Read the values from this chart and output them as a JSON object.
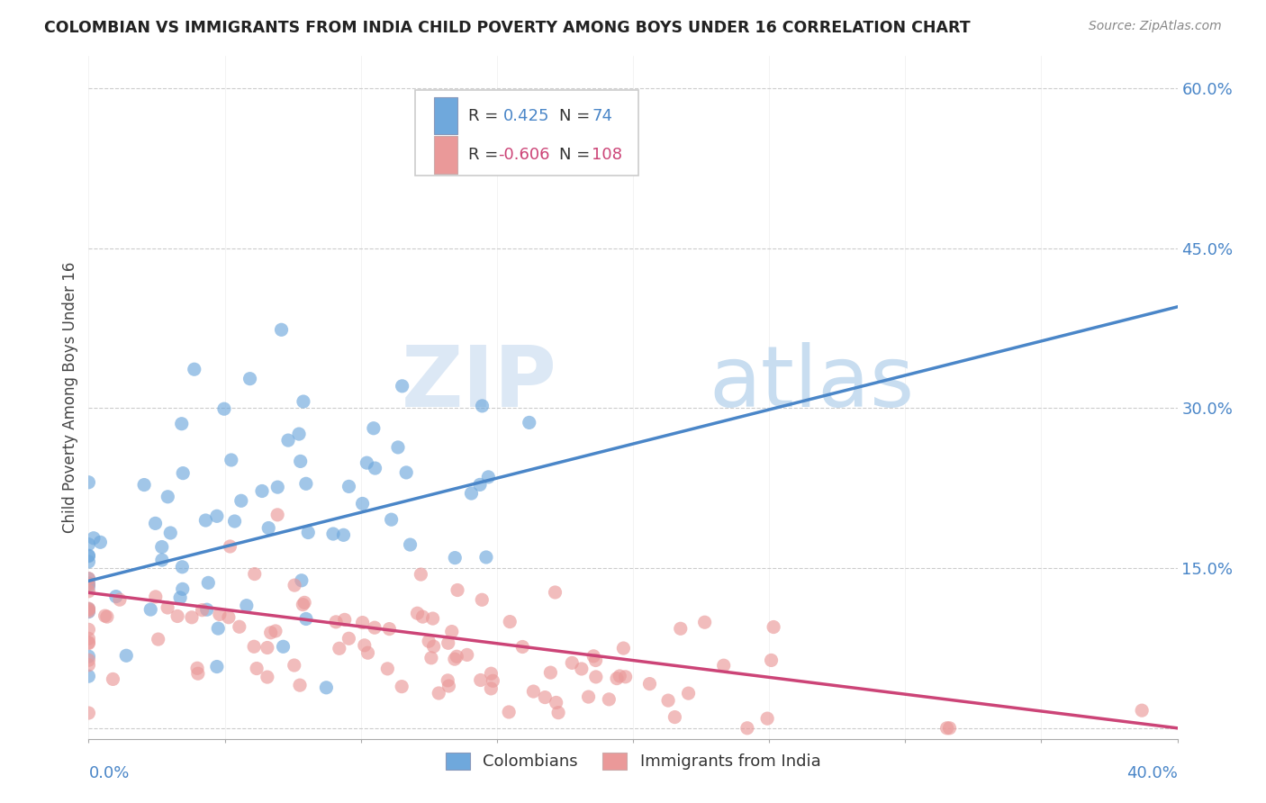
{
  "title": "COLOMBIAN VS IMMIGRANTS FROM INDIA CHILD POVERTY AMONG BOYS UNDER 16 CORRELATION CHART",
  "source": "Source: ZipAtlas.com",
  "ylabel": "Child Poverty Among Boys Under 16",
  "right_yticks": [
    0.0,
    0.15,
    0.3,
    0.45,
    0.6
  ],
  "right_yticklabels": [
    "",
    "15.0%",
    "30.0%",
    "45.0%",
    "60.0%"
  ],
  "xmin": 0.0,
  "xmax": 0.4,
  "ymin": -0.01,
  "ymax": 0.63,
  "colombian_color": "#6fa8dc",
  "india_color": "#ea9999",
  "colombian_R": 0.425,
  "colombian_N": 74,
  "india_R": -0.606,
  "india_N": 108,
  "background_color": "#ffffff",
  "grid_color": "#cccccc",
  "title_color": "#222222",
  "axis_label_color": "#4a86c8",
  "colombia_line_color": "#4a86c8",
  "india_line_color": "#cc4477",
  "legend_R_color": "#4a86c8",
  "legend_R_neg_color": "#cc4477",
  "watermark_ZIP_color": "#dce8f5",
  "watermark_atlas_color": "#c8ddf0"
}
